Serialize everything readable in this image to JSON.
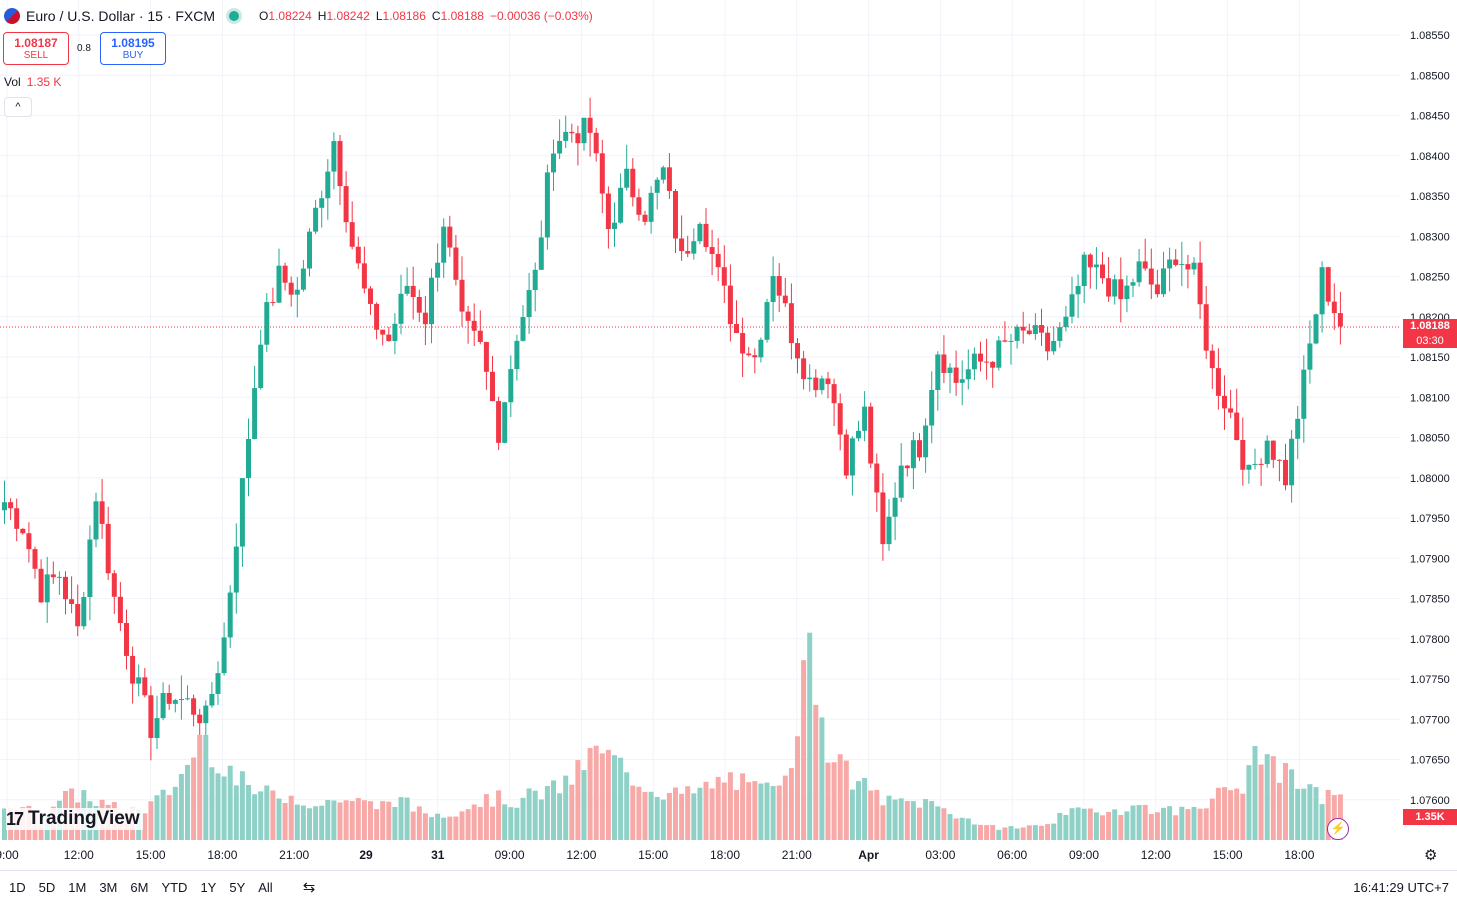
{
  "header": {
    "symbol": "Euro / U.S. Dollar · 15 · FXCM",
    "ohlc": [
      {
        "label": "O",
        "value": "1.08224"
      },
      {
        "label": "H",
        "value": "1.08242"
      },
      {
        "label": "L",
        "value": "1.08186"
      },
      {
        "label": "C",
        "value": "1.08188"
      },
      {
        "label": "",
        "value": "−0.00036 (−0.03%)"
      }
    ]
  },
  "trade": {
    "sell_price": "1.08187",
    "sell_label": "SELL",
    "spread": "0.8",
    "buy_price": "1.08195",
    "buy_label": "BUY"
  },
  "volume": {
    "label": "Vol",
    "value": "1.35 K"
  },
  "collapse_glyph": "^",
  "last_price": {
    "value": "1.08188",
    "countdown": "03:30"
  },
  "volume_tag": "1.35K",
  "logo": {
    "mark": "17",
    "text": "TradingView"
  },
  "colors": {
    "up": "#22ab94",
    "down": "#f23645",
    "vol_up": "#8fd1c7",
    "vol_down": "#f7a9a7"
  },
  "price_axis": {
    "labels": [
      "1.08550",
      "1.08500",
      "1.08450",
      "1.08400",
      "1.08350",
      "1.08300",
      "1.08250",
      "1.08200",
      "1.08150",
      "1.08100",
      "1.08050",
      "1.08000",
      "1.07950",
      "1.07900",
      "1.07850",
      "1.07800",
      "1.07750",
      "1.07700",
      "1.07650",
      "1.07600"
    ]
  },
  "time_axis": {
    "labels": [
      "9:00",
      "12:00",
      "15:00",
      "18:00",
      "21:00",
      "29",
      "31",
      "09:00",
      "12:00",
      "15:00",
      "18:00",
      "21:00",
      "Apr",
      "03:00",
      "06:00",
      "09:00",
      "12:00",
      "15:00",
      "18:00"
    ]
  },
  "bottom_bar": {
    "ranges": [
      "1D",
      "5D",
      "1M",
      "3M",
      "6M",
      "YTD",
      "1Y",
      "5Y",
      "All"
    ],
    "clock": "16:41:29 UTC+7"
  },
  "chart_data": {
    "type": "candlestick",
    "ylim": [
      1.0758,
      1.0857
    ],
    "keypoints": [
      1.0797,
      1.0794,
      1.0786,
      1.0788,
      1.0781,
      1.0798,
      1.0785,
      1.0776,
      1.0769,
      1.0773,
      1.0772,
      1.077,
      1.078,
      1.0799,
      1.0818,
      1.0825,
      1.0823,
      1.0833,
      1.0842,
      1.0829,
      1.082,
      1.0817,
      1.0824,
      1.082,
      1.0832,
      1.0819,
      1.0816,
      1.0806,
      1.0818,
      1.0825,
      1.0842,
      1.0843,
      1.0843,
      1.0831,
      1.0837,
      1.0833,
      1.0838,
      1.0827,
      1.0833,
      1.0825,
      1.0818,
      1.0815,
      1.0826,
      1.0818,
      1.0812,
      1.0813,
      1.0802,
      1.0808,
      1.0791,
      1.0802,
      1.0804,
      1.0816,
      1.0812,
      1.0814,
      1.0815,
      1.0817,
      1.0818,
      1.0816,
      1.0819,
      1.0826,
      1.0825,
      1.0822,
      1.0826,
      1.0823,
      1.0828,
      1.0825,
      1.0813,
      1.0808,
      1.08,
      1.0805,
      1.08,
      1.0812,
      1.0825,
      1.0819
    ],
    "volume_keypoints": [
      0.18,
      0.14,
      0.14,
      0.2,
      0.22,
      0.17,
      0.14,
      0.14,
      0.2,
      0.3,
      0.5,
      0.38,
      0.28,
      0.22,
      0.22,
      0.2,
      0.16,
      0.2,
      0.18,
      0.16,
      0.2,
      0.14,
      0.12,
      0.14,
      0.18,
      0.2,
      0.18,
      0.22,
      0.24,
      0.3,
      0.42,
      0.38,
      0.3,
      0.24,
      0.22,
      0.22,
      0.26,
      0.3,
      0.24,
      0.24,
      0.4,
      0.9,
      0.42,
      0.3,
      0.24,
      0.18,
      0.18,
      0.18,
      0.14,
      0.1,
      0.06,
      0.06,
      0.06,
      0.08,
      0.12,
      0.14,
      0.14,
      0.15,
      0.16,
      0.14,
      0.14,
      0.18,
      0.22,
      0.26,
      0.44,
      0.32,
      0.26,
      0.2,
      0.24
    ],
    "series": [
      {
        "name": "Vol",
        "unit": "K",
        "last": 1.35
      }
    ]
  }
}
